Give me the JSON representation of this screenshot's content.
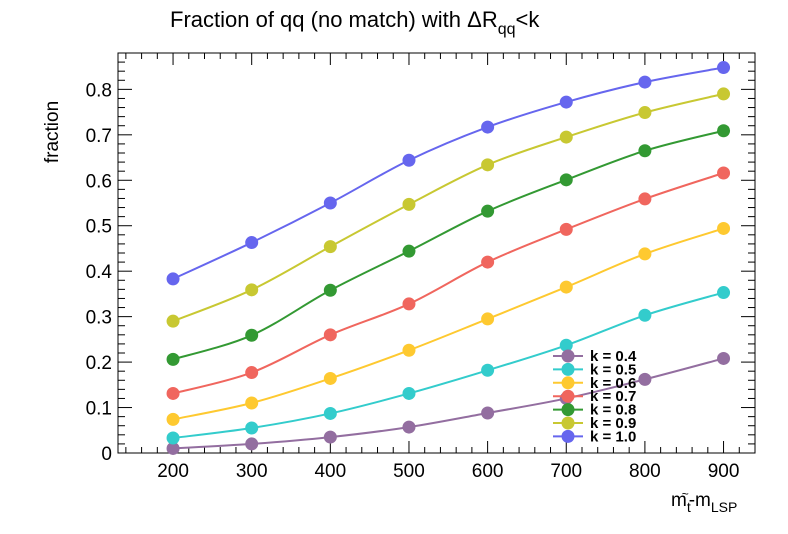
{
  "chart_data": {
    "type": "line",
    "title": "Fraction of qq (no match) with ΔR",
    "title_sub": "qq",
    "title_tail": "<k",
    "xlabel_main": "m",
    "xlabel_sub1": "t",
    "xlabel_tilde": "~",
    "xlabel_dash": "-m",
    "xlabel_sub2": "LSP",
    "ylabel": "fraction",
    "x": [
      200,
      300,
      400,
      500,
      600,
      700,
      800,
      900
    ],
    "xlim": [
      130,
      940
    ],
    "ylim": [
      0,
      0.88
    ],
    "xticks": [
      "200",
      "300",
      "400",
      "500",
      "600",
      "700",
      "800",
      "900"
    ],
    "yticks": [
      "0",
      "0.1",
      "0.2",
      "0.3",
      "0.4",
      "0.5",
      "0.6",
      "0.7",
      "0.8"
    ],
    "legend_position": "bottom-right",
    "grid": false,
    "series": [
      {
        "name": "k = 0.4",
        "color": "#936ea0",
        "values": [
          0.01,
          0.02,
          0.035,
          0.057,
          0.088,
          0.12,
          0.162,
          0.208
        ]
      },
      {
        "name": "k = 0.5",
        "color": "#33cccc",
        "values": [
          0.033,
          0.055,
          0.087,
          0.131,
          0.182,
          0.237,
          0.303,
          0.353
        ]
      },
      {
        "name": "k = 0.6",
        "color": "#fec930",
        "values": [
          0.074,
          0.11,
          0.164,
          0.226,
          0.295,
          0.365,
          0.438,
          0.494
        ]
      },
      {
        "name": "k = 0.7",
        "color": "#f0665e",
        "values": [
          0.131,
          0.177,
          0.26,
          0.328,
          0.42,
          0.492,
          0.559,
          0.616
        ]
      },
      {
        "name": "k = 0.8",
        "color": "#339933",
        "values": [
          0.206,
          0.259,
          0.358,
          0.444,
          0.532,
          0.601,
          0.665,
          0.709
        ]
      },
      {
        "name": "k = 0.9",
        "color": "#c8c832",
        "values": [
          0.29,
          0.359,
          0.454,
          0.547,
          0.634,
          0.695,
          0.749,
          0.79
        ]
      },
      {
        "name": "k = 1.0",
        "color": "#6666ee",
        "values": [
          0.383,
          0.463,
          0.55,
          0.644,
          0.717,
          0.772,
          0.816,
          0.848
        ]
      }
    ]
  }
}
